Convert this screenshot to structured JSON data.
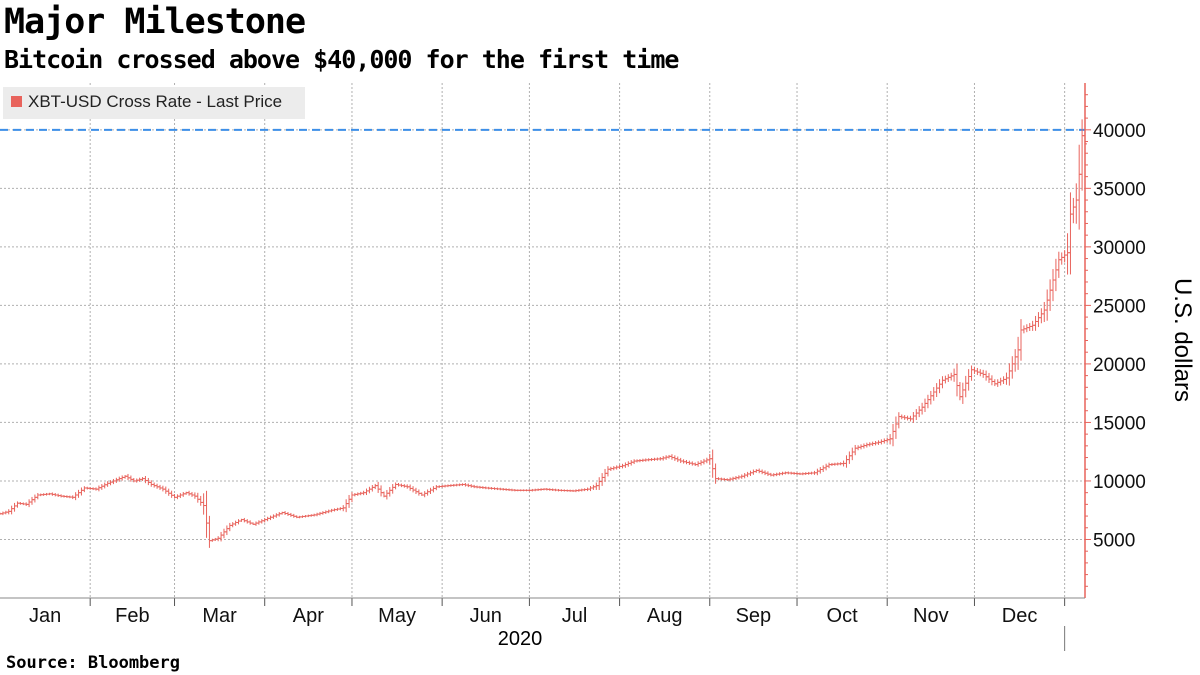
{
  "title": "Major Milestone",
  "subtitle": "Bitcoin crossed above $40,000 for the first time",
  "source": "Source: Bloomberg",
  "colors": {
    "series": "#e8635c",
    "threshold": "#3d8fe8",
    "grid": "#b0b0b0",
    "axis": "#e8635c"
  },
  "chart_data": {
    "type": "line",
    "style": "ohlc-bars",
    "xlabel": "2020",
    "ylabel": "U.S. dollars",
    "ylim": [
      0,
      44000
    ],
    "xlim": [
      "2020-01-01",
      "2021-01-08"
    ],
    "grid": true,
    "legend_position": "top-left",
    "month_ticks": [
      "Jan",
      "Feb",
      "Mar",
      "Apr",
      "May",
      "Jun",
      "Jul",
      "Aug",
      "Sep",
      "Oct",
      "Nov",
      "Dec"
    ],
    "y_ticks": [
      5000,
      10000,
      15000,
      20000,
      25000,
      30000,
      35000,
      40000
    ],
    "threshold": 40000,
    "series": [
      {
        "name": "XBT-USD Cross Rate - Last Price",
        "points": [
          [
            "2020-01-01",
            7200
          ],
          [
            "2020-01-04",
            7400
          ],
          [
            "2020-01-07",
            8100
          ],
          [
            "2020-01-10",
            8000
          ],
          [
            "2020-01-14",
            8800
          ],
          [
            "2020-01-18",
            8900
          ],
          [
            "2020-01-22",
            8700
          ],
          [
            "2020-01-26",
            8600
          ],
          [
            "2020-01-30",
            9400
          ],
          [
            "2020-02-03",
            9300
          ],
          [
            "2020-02-07",
            9800
          ],
          [
            "2020-02-10",
            10100
          ],
          [
            "2020-02-13",
            10400
          ],
          [
            "2020-02-16",
            10000
          ],
          [
            "2020-02-19",
            10200
          ],
          [
            "2020-02-22",
            9700
          ],
          [
            "2020-02-26",
            9300
          ],
          [
            "2020-03-01",
            8600
          ],
          [
            "2020-03-05",
            9000
          ],
          [
            "2020-03-08",
            8700
          ],
          [
            "2020-03-11",
            7900
          ],
          [
            "2020-03-13",
            4900
          ],
          [
            "2020-03-16",
            5100
          ],
          [
            "2020-03-20",
            6200
          ],
          [
            "2020-03-24",
            6700
          ],
          [
            "2020-03-28",
            6300
          ],
          [
            "2020-04-02",
            6800
          ],
          [
            "2020-04-07",
            7300
          ],
          [
            "2020-04-12",
            6900
          ],
          [
            "2020-04-18",
            7100
          ],
          [
            "2020-04-24",
            7500
          ],
          [
            "2020-04-28",
            7700
          ],
          [
            "2020-05-01",
            8800
          ],
          [
            "2020-05-05",
            9000
          ],
          [
            "2020-05-09",
            9600
          ],
          [
            "2020-05-12",
            8700
          ],
          [
            "2020-05-16",
            9700
          ],
          [
            "2020-05-20",
            9500
          ],
          [
            "2020-05-25",
            8800
          ],
          [
            "2020-05-30",
            9500
          ],
          [
            "2020-06-03",
            9600
          ],
          [
            "2020-06-08",
            9700
          ],
          [
            "2020-06-12",
            9500
          ],
          [
            "2020-06-16",
            9400
          ],
          [
            "2020-06-21",
            9300
          ],
          [
            "2020-06-26",
            9200
          ],
          [
            "2020-07-01",
            9200
          ],
          [
            "2020-07-06",
            9300
          ],
          [
            "2020-07-11",
            9200
          ],
          [
            "2020-07-16",
            9150
          ],
          [
            "2020-07-21",
            9300
          ],
          [
            "2020-07-24",
            9600
          ],
          [
            "2020-07-28",
            11000
          ],
          [
            "2020-08-02",
            11300
          ],
          [
            "2020-08-06",
            11700
          ],
          [
            "2020-08-10",
            11800
          ],
          [
            "2020-08-15",
            11900
          ],
          [
            "2020-08-18",
            12100
          ],
          [
            "2020-08-22",
            11700
          ],
          [
            "2020-08-27",
            11400
          ],
          [
            "2020-09-01",
            11900
          ],
          [
            "2020-09-03",
            10200
          ],
          [
            "2020-09-07",
            10100
          ],
          [
            "2020-09-12",
            10400
          ],
          [
            "2020-09-17",
            10900
          ],
          [
            "2020-09-22",
            10500
          ],
          [
            "2020-09-27",
            10700
          ],
          [
            "2020-10-02",
            10600
          ],
          [
            "2020-10-07",
            10700
          ],
          [
            "2020-10-12",
            11400
          ],
          [
            "2020-10-17",
            11500
          ],
          [
            "2020-10-21",
            12800
          ],
          [
            "2020-10-25",
            13100
          ],
          [
            "2020-10-29",
            13300
          ],
          [
            "2020-11-02",
            13600
          ],
          [
            "2020-11-05",
            15500
          ],
          [
            "2020-11-09",
            15300
          ],
          [
            "2020-11-13",
            16300
          ],
          [
            "2020-11-17",
            17600
          ],
          [
            "2020-11-20",
            18600
          ],
          [
            "2020-11-24",
            19100
          ],
          [
            "2020-11-26",
            17200
          ],
          [
            "2020-11-30",
            19500
          ],
          [
            "2020-12-04",
            19100
          ],
          [
            "2020-12-08",
            18300
          ],
          [
            "2020-12-12",
            18800
          ],
          [
            "2020-12-16",
            21200
          ],
          [
            "2020-12-17",
            22900
          ],
          [
            "2020-12-21",
            23300
          ],
          [
            "2020-12-25",
            24600
          ],
          [
            "2020-12-27",
            26300
          ],
          [
            "2020-12-30",
            28900
          ],
          [
            "2021-01-02",
            29500
          ],
          [
            "2021-01-03",
            32800
          ],
          [
            "2021-01-05",
            34000
          ],
          [
            "2021-01-06",
            36200
          ],
          [
            "2021-01-07",
            39500
          ],
          [
            "2021-01-08",
            38800
          ]
        ]
      }
    ]
  }
}
